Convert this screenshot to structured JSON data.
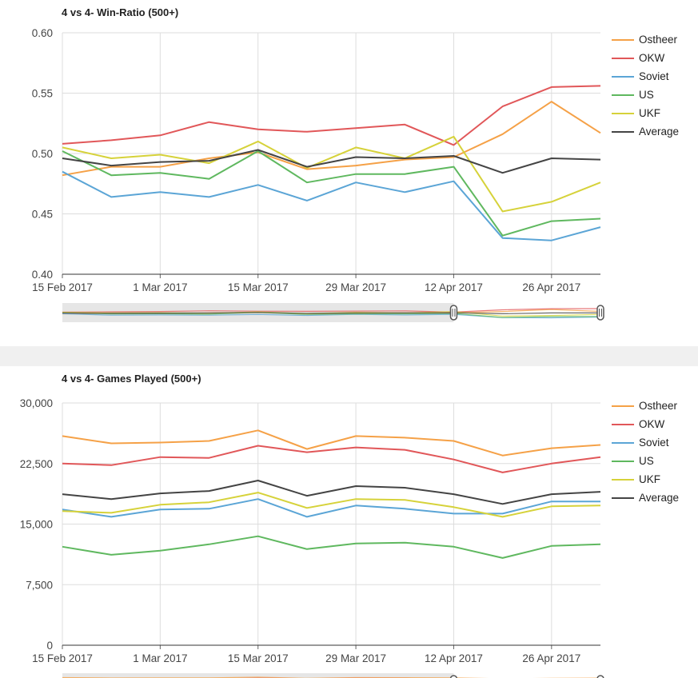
{
  "chart_data": [
    {
      "type": "line",
      "title": "4 vs 4- Win-Ratio (500+)",
      "xlabel": "",
      "ylabel": "",
      "x": [
        "2017-02-15",
        "2017-02-22",
        "2017-03-01",
        "2017-03-08",
        "2017-03-15",
        "2017-03-22",
        "2017-03-29",
        "2017-04-05",
        "2017-04-12",
        "2017-04-19",
        "2017-04-26",
        "2017-05-03"
      ],
      "xticks": [
        "15 Feb 2017",
        "1 Mar 2017",
        "15 Mar 2017",
        "29 Mar 2017",
        "12 Apr 2017",
        "26 Apr 2017"
      ],
      "ylim": [
        0.4,
        0.6
      ],
      "yticks": [
        "0.40",
        "0.45",
        "0.50",
        "0.55",
        "0.60"
      ],
      "grid": true,
      "legend": "right",
      "series": [
        {
          "name": "Ostheer",
          "color": "#f5a147",
          "values": [
            0.482,
            0.489,
            0.489,
            0.496,
            0.501,
            0.487,
            0.49,
            0.495,
            0.497,
            0.516,
            0.543,
            0.517
          ]
        },
        {
          "name": "OKW",
          "color": "#e15759",
          "values": [
            0.508,
            0.511,
            0.515,
            0.526,
            0.52,
            0.518,
            0.521,
            0.524,
            0.507,
            0.539,
            0.555,
            0.556
          ]
        },
        {
          "name": "Soviet",
          "color": "#5ba5d6",
          "values": [
            0.485,
            0.464,
            0.468,
            0.464,
            0.474,
            0.461,
            0.476,
            0.468,
            0.477,
            0.43,
            0.428,
            0.439
          ]
        },
        {
          "name": "US",
          "color": "#5fb85f",
          "values": [
            0.502,
            0.482,
            0.484,
            0.479,
            0.502,
            0.476,
            0.483,
            0.483,
            0.489,
            0.432,
            0.444,
            0.446
          ]
        },
        {
          "name": "UKF",
          "color": "#d6d23a",
          "values": [
            0.505,
            0.496,
            0.499,
            0.492,
            0.51,
            0.488,
            0.505,
            0.496,
            0.514,
            0.452,
            0.46,
            0.476
          ]
        },
        {
          "name": "Average",
          "color": "#444444",
          "values": [
            0.496,
            0.49,
            0.493,
            0.494,
            0.503,
            0.489,
            0.497,
            0.496,
            0.498,
            0.484,
            0.496,
            0.495
          ]
        }
      ]
    },
    {
      "type": "line",
      "title": "4 vs 4- Games Played (500+)",
      "xlabel": "",
      "ylabel": "",
      "x": [
        "2017-02-15",
        "2017-02-22",
        "2017-03-01",
        "2017-03-08",
        "2017-03-15",
        "2017-03-22",
        "2017-03-29",
        "2017-04-05",
        "2017-04-12",
        "2017-04-19",
        "2017-04-26",
        "2017-05-03"
      ],
      "xticks": [
        "15 Feb 2017",
        "1 Mar 2017",
        "15 Mar 2017",
        "29 Mar 2017",
        "12 Apr 2017",
        "26 Apr 2017"
      ],
      "ylim": [
        0,
        30000
      ],
      "yticks": [
        "0",
        "7,500",
        "15,000",
        "22,500",
        "30,000"
      ],
      "grid": true,
      "legend": "right",
      "series": [
        {
          "name": "Ostheer",
          "color": "#f5a147",
          "values": [
            25900,
            25000,
            25100,
            25300,
            26600,
            24300,
            25900,
            25700,
            25300,
            23500,
            24400,
            24800
          ]
        },
        {
          "name": "OKW",
          "color": "#e15759",
          "values": [
            22500,
            22300,
            23300,
            23200,
            24700,
            23900,
            24500,
            24200,
            23000,
            21400,
            22500,
            23300
          ]
        },
        {
          "name": "Soviet",
          "color": "#5ba5d6",
          "values": [
            16800,
            15900,
            16800,
            16900,
            18100,
            15900,
            17300,
            16900,
            16300,
            16300,
            17800,
            17800
          ]
        },
        {
          "name": "US",
          "color": "#5fb85f",
          "values": [
            12200,
            11200,
            11700,
            12500,
            13500,
            11900,
            12600,
            12700,
            12200,
            10800,
            12300,
            12500
          ]
        },
        {
          "name": "UKF",
          "color": "#d6d23a",
          "values": [
            16600,
            16400,
            17400,
            17700,
            18900,
            17000,
            18100,
            18000,
            17100,
            15900,
            17200,
            17300
          ]
        },
        {
          "name": "Average",
          "color": "#444444",
          "values": [
            18700,
            18100,
            18800,
            19100,
            20400,
            18500,
            19700,
            19500,
            18700,
            17500,
            18700,
            19000
          ]
        }
      ]
    }
  ]
}
